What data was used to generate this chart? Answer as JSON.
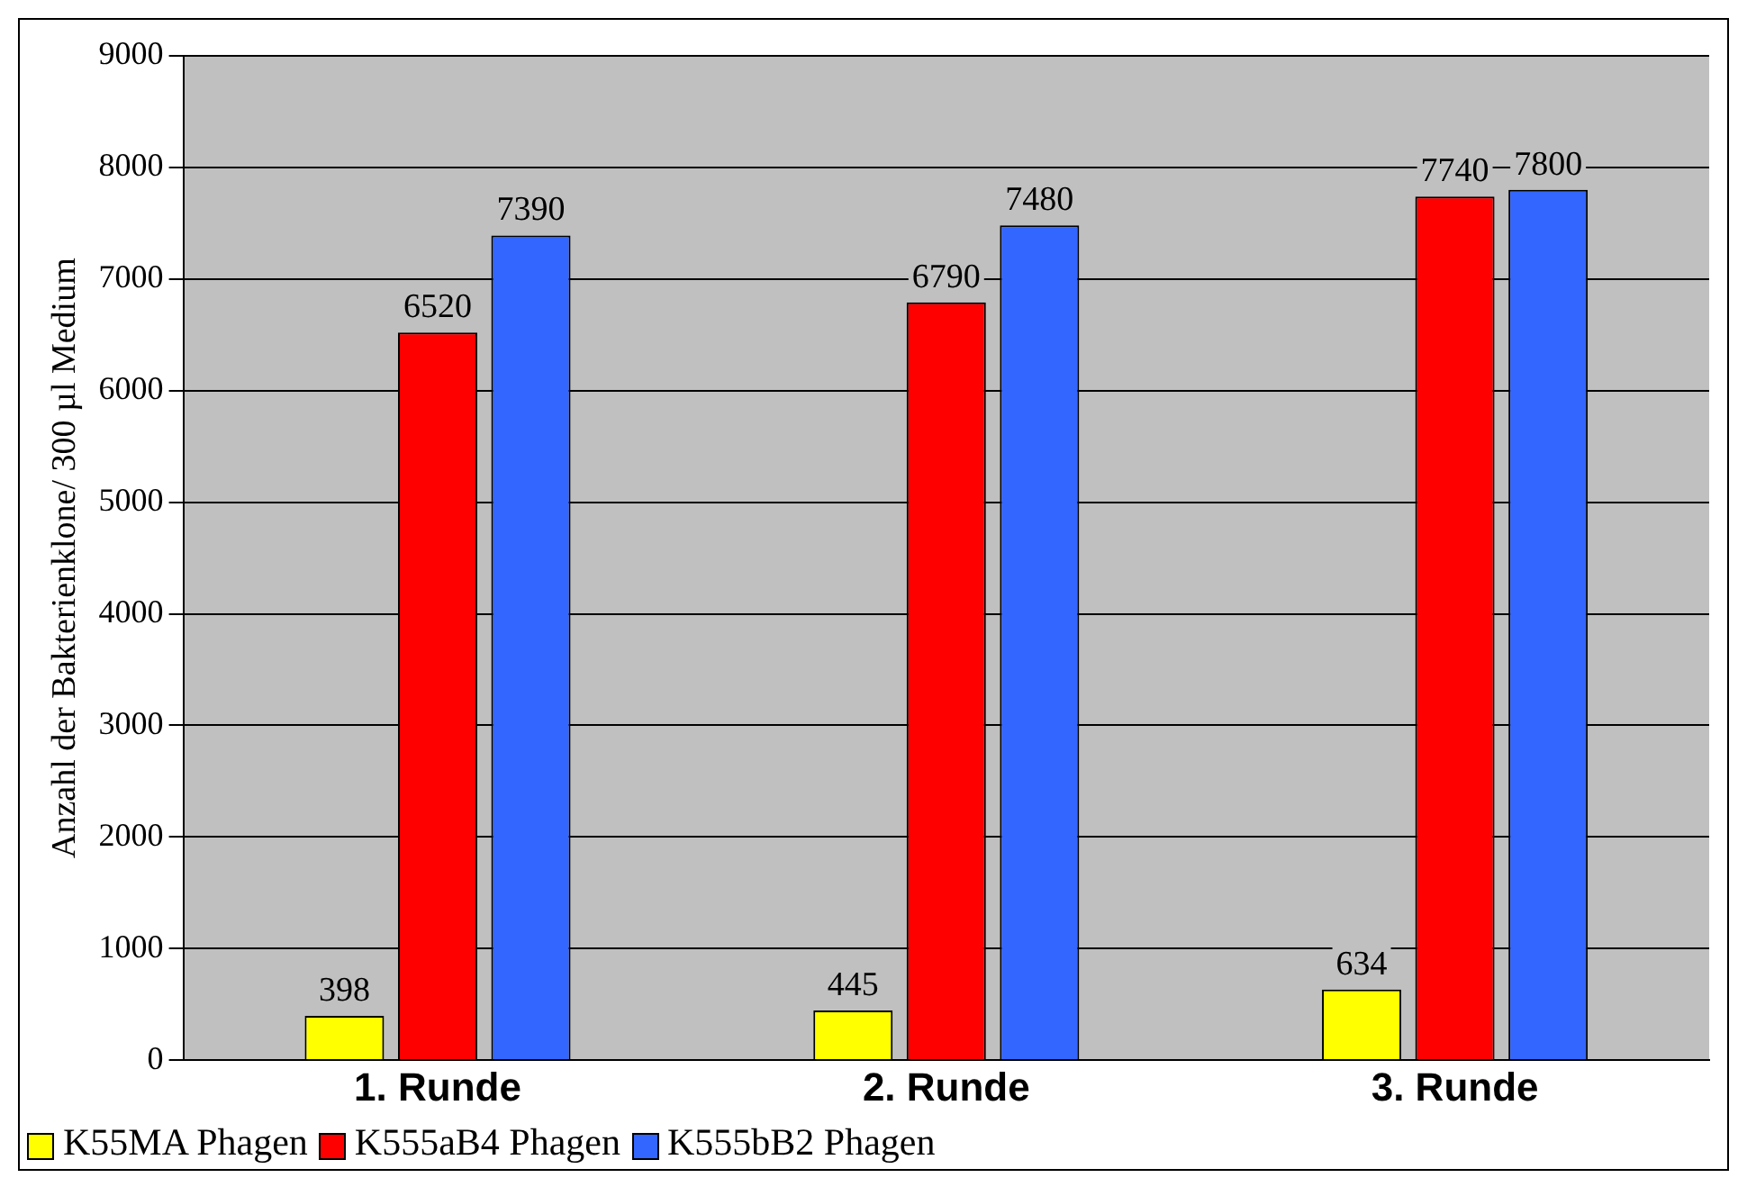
{
  "chart_data": {
    "type": "bar",
    "ylabel": "Anzahl der Bakterienklone/ 300 µl Medium",
    "categories": [
      "1. Runde",
      "2. Runde",
      "3. Runde"
    ],
    "series": [
      {
        "name": "K55MA Phagen",
        "color": "#ffff00",
        "values": [
          398,
          445,
          634
        ]
      },
      {
        "name": "K555aB4 Phagen",
        "color": "#ff0000",
        "values": [
          6520,
          6790,
          7740
        ]
      },
      {
        "name": "K555bB2 Phagen",
        "color": "#3366ff",
        "values": [
          7390,
          7480,
          7800
        ]
      }
    ],
    "ylim": [
      0,
      9000
    ],
    "yticks": [
      0,
      1000,
      2000,
      3000,
      4000,
      5000,
      6000,
      7000,
      8000,
      9000
    ],
    "grid": "y",
    "legend": "bottom left",
    "data_labels": true
  }
}
